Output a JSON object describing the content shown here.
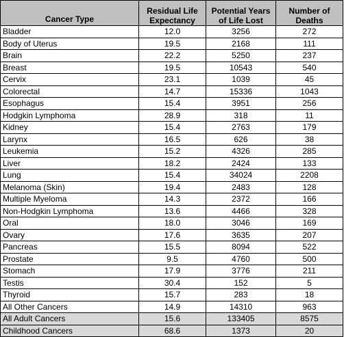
{
  "table": {
    "headers": {
      "type": "Cancer Type",
      "residual": "Residual Life Expectancy",
      "potential": "Potential Years of Life Lost",
      "deaths": "Number of Deaths"
    },
    "rows": [
      {
        "type": "Bladder",
        "residual": "12.0",
        "potential": "3256",
        "deaths": "272"
      },
      {
        "type": "Body of Uterus",
        "residual": "19.5",
        "potential": "2168",
        "deaths": "111"
      },
      {
        "type": "Brain",
        "residual": "22.2",
        "potential": "5250",
        "deaths": "237"
      },
      {
        "type": "Breast",
        "residual": "19.5",
        "potential": "10543",
        "deaths": "540"
      },
      {
        "type": "Cervix",
        "residual": "23.1",
        "potential": "1039",
        "deaths": "45"
      },
      {
        "type": "Colorectal",
        "residual": "14.7",
        "potential": "15336",
        "deaths": "1043"
      },
      {
        "type": "Esophagus",
        "residual": "15.4",
        "potential": "3951",
        "deaths": "256"
      },
      {
        "type": "Hodgkin Lymphoma",
        "residual": "28.9",
        "potential": "318",
        "deaths": "11"
      },
      {
        "type": "Kidney",
        "residual": "15.4",
        "potential": "2763",
        "deaths": "179"
      },
      {
        "type": "Larynx",
        "residual": "16.5",
        "potential": "626",
        "deaths": "38"
      },
      {
        "type": "Leukemia",
        "residual": "15.2",
        "potential": "4326",
        "deaths": "285"
      },
      {
        "type": "Liver",
        "residual": "18.2",
        "potential": "2424",
        "deaths": "133"
      },
      {
        "type": "Lung",
        "residual": "15.4",
        "potential": "34024",
        "deaths": "2208"
      },
      {
        "type": "Melanoma (Skin)",
        "residual": "19.4",
        "potential": "2483",
        "deaths": "128"
      },
      {
        "type": "Multiple Myeloma",
        "residual": "14.3",
        "potential": "2372",
        "deaths": "166"
      },
      {
        "type": "Non-Hodgkin Lymphoma",
        "residual": "13.6",
        "potential": "4466",
        "deaths": "328"
      },
      {
        "type": "Oral",
        "residual": "18.0",
        "potential": "3046",
        "deaths": "169"
      },
      {
        "type": "Ovary",
        "residual": "17.6",
        "potential": "3635",
        "deaths": "207"
      },
      {
        "type": "Pancreas",
        "residual": "15.5",
        "potential": "8094",
        "deaths": "522"
      },
      {
        "type": "Prostate",
        "residual": "9.5",
        "potential": "4760",
        "deaths": "500"
      },
      {
        "type": "Stomach",
        "residual": "17.9",
        "potential": "3776",
        "deaths": "211"
      },
      {
        "type": "Testis",
        "residual": "30.4",
        "potential": "152",
        "deaths": "5"
      },
      {
        "type": "Thyroid",
        "residual": "15.7",
        "potential": "283",
        "deaths": "18"
      },
      {
        "type": "All Other Cancers",
        "residual": "14.9",
        "potential": "14310",
        "deaths": "963"
      },
      {
        "type": "All Adult Cancers",
        "residual": "15.6",
        "potential": "133405",
        "deaths": "8575",
        "shaded": true
      },
      {
        "type": "Childhood Cancers",
        "residual": "68.6",
        "potential": "1373",
        "deaths": "20",
        "shaded": true
      }
    ],
    "colors": {
      "header_bg": "#c0c0c0",
      "summary_bg": "#d9d9d9",
      "border": "#000000"
    }
  }
}
